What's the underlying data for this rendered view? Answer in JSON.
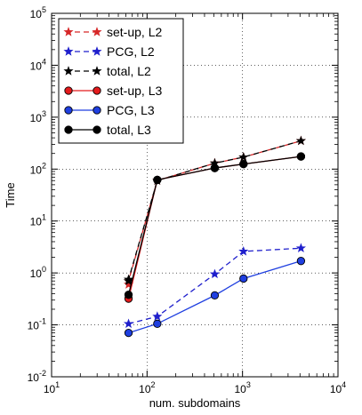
{
  "chart_data": {
    "type": "line",
    "xlabel": "num. subdomains",
    "ylabel": "Time",
    "xscale": "log",
    "yscale": "log",
    "xlim": [
      10,
      10000
    ],
    "ylim": [
      0.01,
      100000
    ],
    "grid": true,
    "legend_position": "top-left",
    "x_ticks": [
      {
        "value": 10,
        "base": "10",
        "exp": "1"
      },
      {
        "value": 100,
        "base": "10",
        "exp": "2"
      },
      {
        "value": 1000,
        "base": "10",
        "exp": "3"
      },
      {
        "value": 10000,
        "base": "10",
        "exp": "4"
      }
    ],
    "y_ticks": [
      {
        "value": 0.01,
        "base": "10",
        "exp": "-2"
      },
      {
        "value": 0.1,
        "base": "10",
        "exp": "-1"
      },
      {
        "value": 1,
        "base": "10",
        "exp": "0"
      },
      {
        "value": 10,
        "base": "10",
        "exp": "1"
      },
      {
        "value": 100,
        "base": "10",
        "exp": "2"
      },
      {
        "value": 1000,
        "base": "10",
        "exp": "3"
      },
      {
        "value": 10000,
        "base": "10",
        "exp": "4"
      },
      {
        "value": 100000,
        "base": "10",
        "exp": "5"
      }
    ],
    "series": [
      {
        "name": "set-up, L2",
        "color": "#d62728",
        "dash": "dashed",
        "marker": "star",
        "x": [
          64,
          64,
          128,
          512,
          1024,
          4096
        ],
        "y": [
          0.6,
          0.7,
          60,
          130,
          170,
          350
        ]
      },
      {
        "name": "PCG, L2",
        "color": "#1f1fcc",
        "dash": "dashed",
        "marker": "star",
        "x": [
          64,
          128,
          512,
          1024,
          4096
        ],
        "y": [
          0.105,
          0.145,
          0.95,
          2.6,
          3.0
        ]
      },
      {
        "name": "total, L2",
        "color": "#000000",
        "dash": "dashed",
        "marker": "star",
        "x": [
          64,
          64,
          128,
          512,
          1024,
          4096
        ],
        "y": [
          0.7,
          0.75,
          60,
          130,
          170,
          350
        ]
      },
      {
        "name": "set-up, L3",
        "color": "#e41a1c",
        "dash": "solid",
        "marker": "circle",
        "x": [
          64,
          128,
          512,
          1024,
          4096
        ],
        "y": [
          0.32,
          62,
          105,
          125,
          175
        ]
      },
      {
        "name": "PCG, L3",
        "color": "#1f3fe0",
        "dash": "solid",
        "marker": "circle",
        "x": [
          64,
          128,
          512,
          1024,
          4096
        ],
        "y": [
          0.07,
          0.105,
          0.37,
          0.78,
          1.7
        ]
      },
      {
        "name": "total, L3",
        "color": "#000000",
        "dash": "solid",
        "marker": "circle",
        "x": [
          64,
          128,
          512,
          1024,
          4096
        ],
        "y": [
          0.38,
          62,
          105,
          125,
          175
        ]
      }
    ]
  }
}
